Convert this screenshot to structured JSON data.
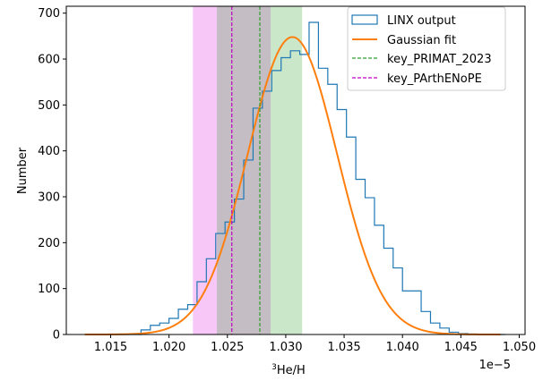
{
  "chart_data": {
    "type": "histogram",
    "title": "",
    "xlabel_sup": "3",
    "xlabel_main": "He/H",
    "ylabel": "Number",
    "x_offset_label": "1e−5",
    "xlim": [
      1.0112,
      1.0505
    ],
    "ylim": [
      0,
      715
    ],
    "x_ticks": [
      1.015,
      1.02,
      1.025,
      1.03,
      1.035,
      1.04,
      1.045,
      1.05
    ],
    "x_tick_labels": [
      "1.015",
      "1.020",
      "1.025",
      "1.030",
      "1.035",
      "1.040",
      "1.045",
      "1.050"
    ],
    "y_ticks": [
      0,
      100,
      200,
      300,
      400,
      500,
      600,
      700
    ],
    "y_tick_labels": [
      "0",
      "100",
      "200",
      "300",
      "400",
      "500",
      "600",
      "700"
    ],
    "histogram": {
      "name": "LINX output",
      "color": "#1f77b4",
      "bin_edges": [
        1.0128,
        1.0136,
        1.0144,
        1.0152,
        1.016,
        1.0168,
        1.0176,
        1.0184,
        1.0192,
        1.02,
        1.0208,
        1.0216,
        1.0224,
        1.0232,
        1.024,
        1.0248,
        1.0256,
        1.0264,
        1.0272,
        1.028,
        1.0288,
        1.0296,
        1.0304,
        1.0312,
        1.032,
        1.0328,
        1.0336,
        1.0344,
        1.0352,
        1.036,
        1.0368,
        1.0376,
        1.0384,
        1.0392,
        1.04,
        1.0408,
        1.0416,
        1.0424,
        1.0432,
        1.044,
        1.0448,
        1.0456,
        1.0464,
        1.0472,
        1.048,
        1.0488
      ],
      "counts": [
        0,
        0,
        0,
        0,
        0,
        0,
        10,
        20,
        25,
        35,
        55,
        65,
        115,
        165,
        220,
        245,
        295,
        380,
        493,
        530,
        575,
        603,
        618,
        610,
        680,
        580,
        545,
        490,
        430,
        338,
        298,
        238,
        188,
        145,
        95,
        95,
        50,
        25,
        14,
        5,
        2,
        1,
        0,
        0,
        0
      ]
    },
    "gaussian_fit": {
      "name": "Gaussian fit",
      "color": "#ff7f0e",
      "peak": 648,
      "mean": 1.03057,
      "sigma": 0.00383,
      "x_start": 1.0128,
      "x_end": 1.0484
    },
    "vlines": [
      {
        "name": "key_PRIMAT_2023",
        "x": 1.02778,
        "color": "#2ca02c"
      },
      {
        "name": "key_PArthENoPE",
        "x": 1.02538,
        "color": "#c000c0"
      }
    ],
    "bands": [
      {
        "from": 1.02205,
        "to": 1.0287,
        "color": "#ee82ee",
        "opacity": 0.45
      },
      {
        "from": 1.0241,
        "to": 1.0314,
        "color": "#2ca02c",
        "opacity": 0.25
      }
    ],
    "legend_position": "top-right",
    "grid": false
  }
}
